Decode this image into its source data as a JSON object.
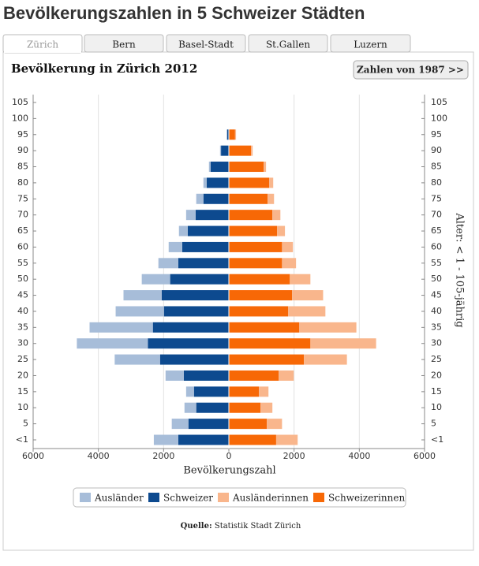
{
  "page_title": "Bevölkerungszahlen in 5 Schweizer Städten",
  "tabs": [
    "Zürich",
    "Bern",
    "Basel-Stadt",
    "St.Gallen",
    "Luzern"
  ],
  "button": "Zahlen von 1987 >>",
  "source_label": "Quelle:",
  "source": "Statistik Stadt Zürich",
  "chart_data": {
    "type": "bar",
    "orientation": "horizontal",
    "title": "Bevölkerung in Zürich 2012",
    "x_label": "Bevölkerungszahl",
    "y2_label": "Alter: < 1 - 105-jährig",
    "categories": [
      "<1",
      "5",
      "10",
      "15",
      "20",
      "25",
      "30",
      "35",
      "40",
      "45",
      "50",
      "55",
      "60",
      "65",
      "70",
      "75",
      "80",
      "85",
      "90",
      "95",
      "100",
      "105"
    ],
    "series": [
      {
        "name": "Ausländer",
        "color": "#a7bdd9",
        "values": [
          -750,
          -510,
          -360,
          -240,
          -560,
          -1390,
          -2180,
          -1940,
          -1480,
          -1170,
          -870,
          -610,
          -415,
          -270,
          -290,
          -220,
          -100,
          -50,
          -30,
          -20,
          null,
          null
        ]
      },
      {
        "name": "Schweizer",
        "color": "#0d4a8f",
        "values": [
          -1550,
          -1240,
          -1000,
          -1070,
          -1380,
          -2110,
          -2480,
          -2330,
          -1990,
          -2060,
          -1800,
          -1550,
          -1430,
          -1260,
          -1020,
          -780,
          -680,
          -560,
          -240,
          -50,
          null,
          null
        ]
      },
      {
        "name": "Ausländerinnen",
        "color": "#f9b68c",
        "values": [
          660,
          465,
          365,
          295,
          460,
          1320,
          2015,
          1750,
          1140,
          950,
          630,
          430,
          335,
          240,
          245,
          195,
          120,
          70,
          50,
          30,
          null,
          null
        ]
      },
      {
        "name": "Schweizerinnen",
        "color": "#f76806",
        "values": [
          1450,
          1165,
          970,
          920,
          1530,
          2300,
          2500,
          2160,
          1820,
          1940,
          1870,
          1630,
          1630,
          1480,
          1335,
          1190,
          1240,
          1070,
          680,
          190,
          null,
          null
        ]
      }
    ],
    "xlim": [
      -6000,
      6000
    ],
    "xticks": [
      {
        "value": -6000,
        "label": "6000"
      },
      {
        "value": -4000,
        "label": "4000"
      },
      {
        "value": -2000,
        "label": "2000"
      },
      0,
      2000,
      4000,
      6000
    ],
    "grid": true
  }
}
